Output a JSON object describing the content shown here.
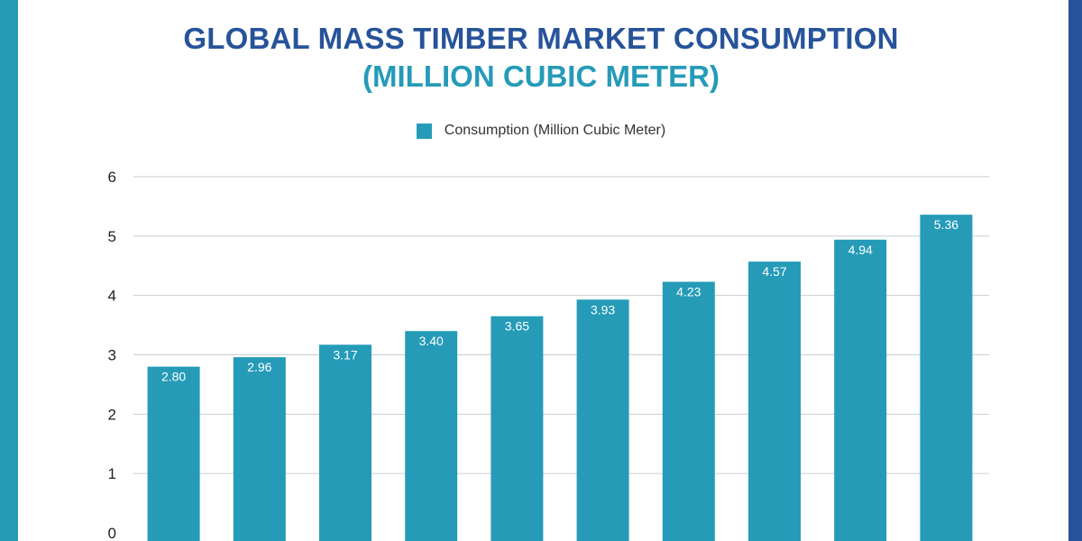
{
  "colors": {
    "bar": "#259bb8",
    "title": "#27539a",
    "subtitle": "#259bb8",
    "edge_left": "#259bb8",
    "edge_right": "#27539a",
    "grid": "#c7cdd3",
    "bar_label": "#ffffff",
    "tick": "#222222"
  },
  "chart_data": {
    "type": "bar",
    "title": "GLOBAL MASS TIMBER MARKET CONSUMPTION",
    "subtitle": "(MILLION CUBIC METER)",
    "legend": [
      "Consumption (Million Cubic Meter)"
    ],
    "legend_position": "top-center",
    "xlabel": "",
    "ylabel": "",
    "ylim": [
      0,
      6
    ],
    "yticks": [
      0,
      1,
      2,
      3,
      4,
      5,
      6
    ],
    "grid": true,
    "series": [
      {
        "name": "Consumption (Million Cubic Meter)",
        "values": [
          2.8,
          2.96,
          3.17,
          3.4,
          3.65,
          3.93,
          4.23,
          4.57,
          4.94,
          5.36
        ],
        "labels": [
          "2.80",
          "2.96",
          "3.17",
          "3.40",
          "3.65",
          "3.93",
          "4.23",
          "4.57",
          "4.94",
          "5.36"
        ]
      }
    ]
  }
}
